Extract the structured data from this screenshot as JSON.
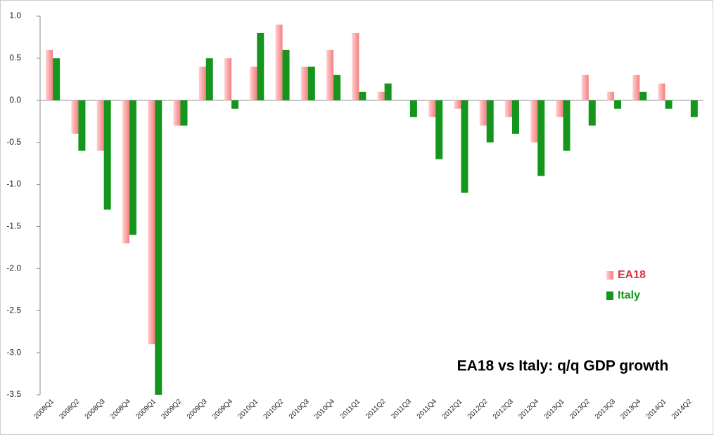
{
  "chart_data": {
    "type": "bar",
    "title": "EA18 vs Italy: q/q GDP growth",
    "categories": [
      "2008Q1",
      "2008Q2",
      "2008Q3",
      "2008Q4",
      "2009Q1",
      "2009Q2",
      "2009Q3",
      "2009Q4",
      "2010Q1",
      "2010Q2",
      "2010Q3",
      "2010Q4",
      "2011Q1",
      "2011Q2",
      "2011Q3",
      "2011Q4",
      "2012Q1",
      "2012Q2",
      "2012Q3",
      "2012Q4",
      "2013Q1",
      "2013Q2",
      "2013Q3",
      "2013Q4",
      "2014Q1",
      "2014Q2"
    ],
    "series": [
      {
        "name": "EA18",
        "color": "#f47f80",
        "values": [
          0.6,
          -0.4,
          -0.6,
          -1.7,
          -2.9,
          -0.3,
          0.4,
          0.5,
          0.4,
          0.9,
          0.4,
          0.6,
          0.8,
          0.1,
          0.0,
          -0.2,
          -0.1,
          -0.3,
          -0.2,
          -0.5,
          -0.2,
          0.3,
          0.1,
          0.3,
          0.2,
          0.0
        ]
      },
      {
        "name": "Italy",
        "color": "#14961c",
        "values": [
          0.5,
          -0.6,
          -1.3,
          -1.6,
          -3.5,
          -0.3,
          0.5,
          -0.1,
          0.8,
          0.6,
          0.4,
          0.3,
          0.1,
          0.2,
          -0.2,
          -0.7,
          -1.1,
          -0.5,
          -0.4,
          -0.9,
          -0.6,
          -0.3,
          -0.1,
          0.1,
          -0.1,
          -0.2
        ]
      }
    ],
    "ylim": [
      -3.5,
      1.0
    ],
    "yticks": [
      {
        "value": 1.0,
        "label": "1.0"
      },
      0.5,
      {
        "value": 0.0,
        "label": "0.0"
      },
      -0.5,
      {
        "value": -1.0,
        "label": "-1.0"
      },
      -1.5,
      {
        "value": -2.0,
        "label": "-2.0"
      },
      -2.5,
      {
        "value": -3.0,
        "label": "-3.0"
      },
      -3.5
    ],
    "grid": false
  }
}
